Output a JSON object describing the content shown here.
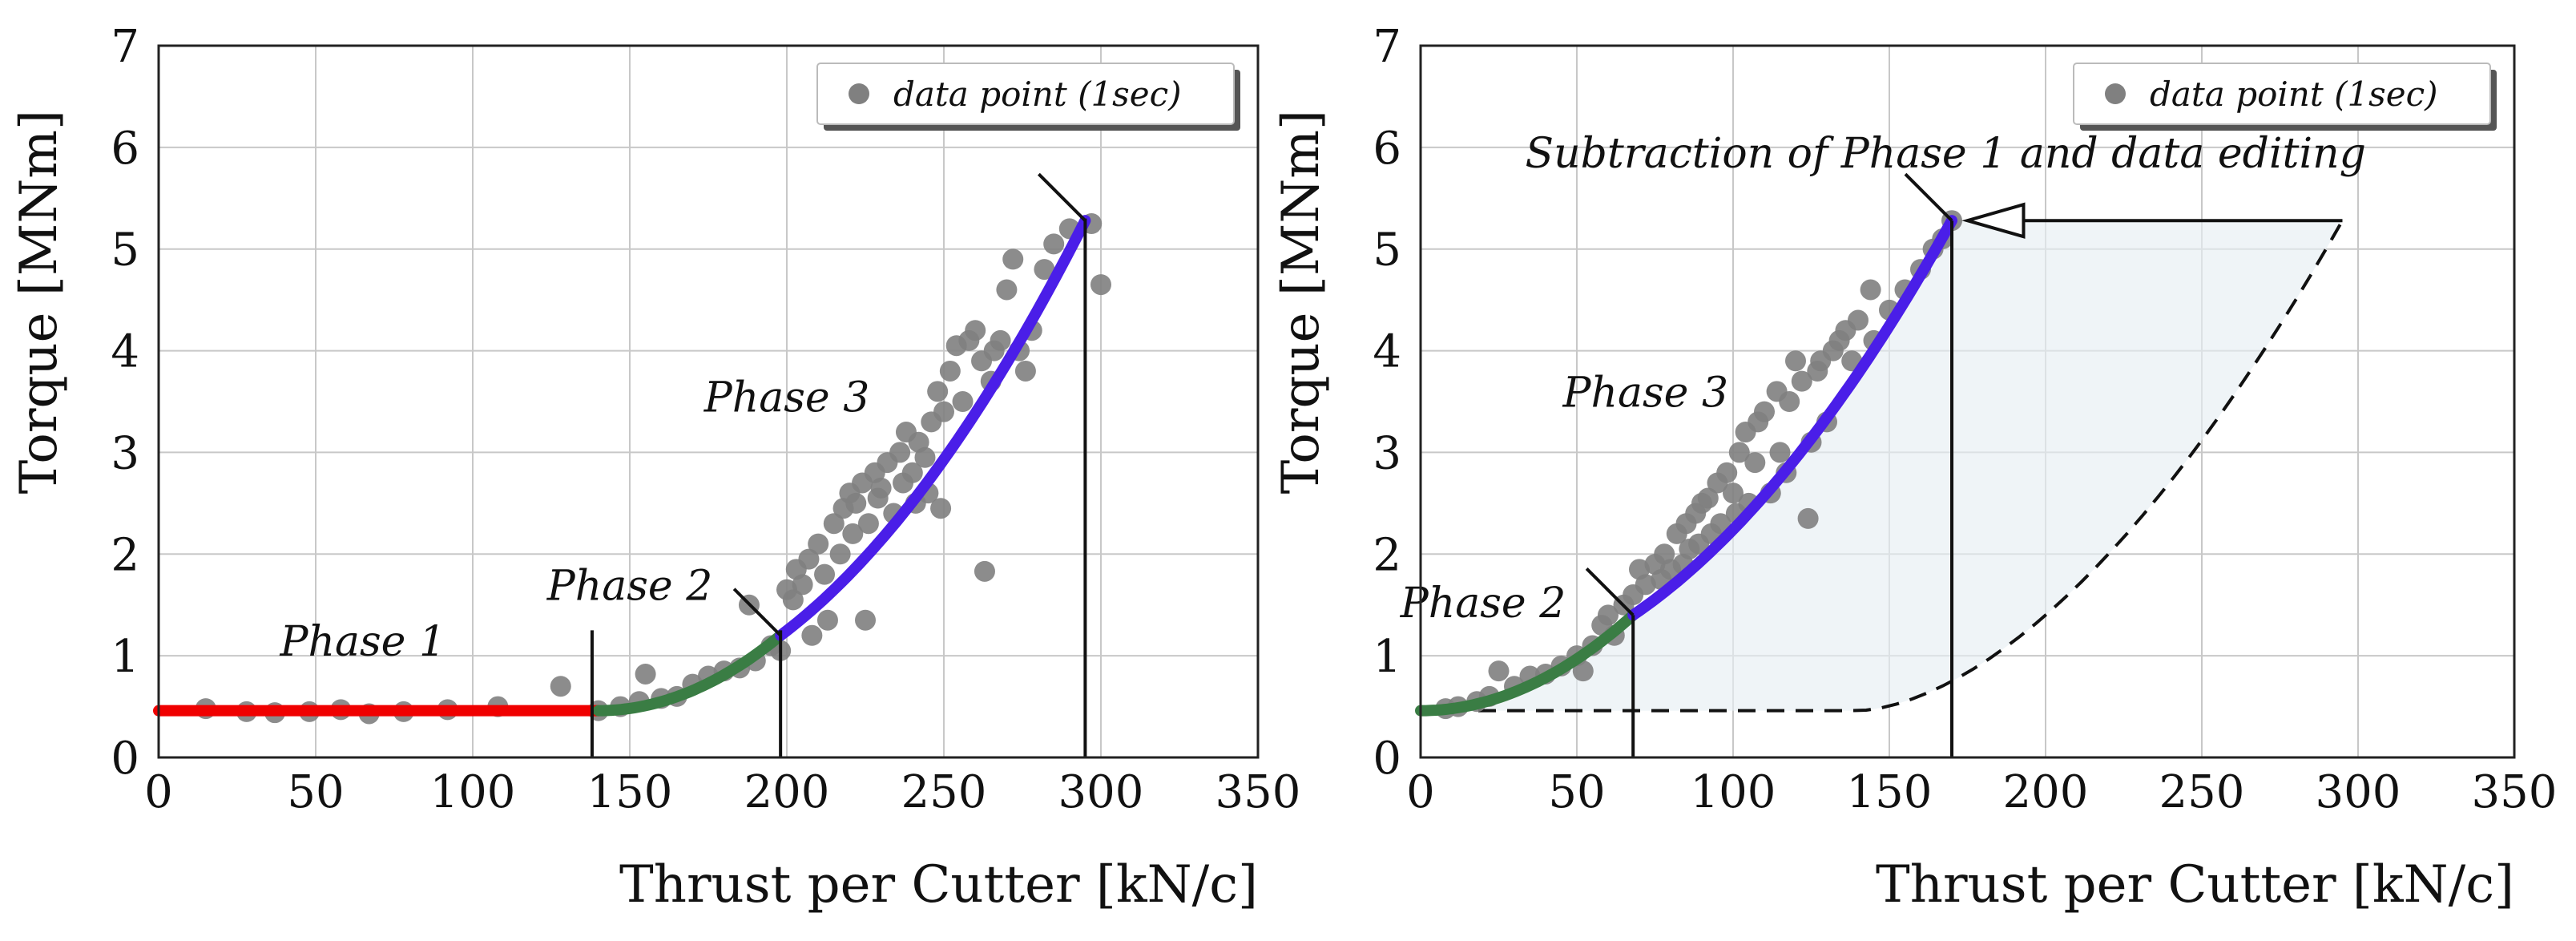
{
  "colors": {
    "point": "#808080",
    "phase1": "#f00000",
    "phase2": "#3a7d44",
    "phase3": "#4a1ee8",
    "grid": "#c8c8c8",
    "fill": "#e6eef3"
  },
  "chart_data": [
    {
      "type": "scatter",
      "xlabel": "Thrust per Cutter [kN/c]",
      "ylabel": "Torque [MNm]",
      "xlim": [
        0,
        350
      ],
      "ylim": [
        0,
        7
      ],
      "xticks": [
        "0",
        "50",
        "100",
        "150",
        "200",
        "250",
        "300",
        "350"
      ],
      "yticks": [
        "0",
        "1",
        "2",
        "3",
        "4",
        "5",
        "6",
        "7"
      ],
      "legend": {
        "label": "data point (1sec)",
        "position": "top-right"
      },
      "annotations": [
        {
          "text": "Phase 1",
          "x": 65,
          "y": 1.0
        },
        {
          "text": "Phase 2",
          "x": 150,
          "y": 1.55
        },
        {
          "text": "Phase 3",
          "x": 200,
          "y": 3.4
        }
      ],
      "points": [
        [
          15,
          0.48
        ],
        [
          28,
          0.45
        ],
        [
          37,
          0.44
        ],
        [
          48,
          0.45
        ],
        [
          58,
          0.47
        ],
        [
          67,
          0.43
        ],
        [
          78,
          0.45
        ],
        [
          92,
          0.47
        ],
        [
          108,
          0.5
        ],
        [
          128,
          0.7
        ],
        [
          140,
          0.46
        ],
        [
          147,
          0.5
        ],
        [
          153,
          0.55
        ],
        [
          155,
          0.82
        ],
        [
          160,
          0.58
        ],
        [
          165,
          0.6
        ],
        [
          170,
          0.72
        ],
        [
          175,
          0.8
        ],
        [
          180,
          0.85
        ],
        [
          185,
          0.88
        ],
        [
          188,
          1.5
        ],
        [
          190,
          0.95
        ],
        [
          195,
          1.1
        ],
        [
          198,
          1.05
        ],
        [
          200,
          1.65
        ],
        [
          202,
          1.55
        ],
        [
          203,
          1.85
        ],
        [
          205,
          1.7
        ],
        [
          207,
          1.95
        ],
        [
          208,
          1.2
        ],
        [
          210,
          2.1
        ],
        [
          212,
          1.8
        ],
        [
          213,
          1.35
        ],
        [
          215,
          2.3
        ],
        [
          217,
          2.0
        ],
        [
          218,
          2.45
        ],
        [
          220,
          2.6
        ],
        [
          221,
          2.2
        ],
        [
          222,
          2.5
        ],
        [
          224,
          2.7
        ],
        [
          225,
          1.35
        ],
        [
          226,
          2.3
        ],
        [
          228,
          2.8
        ],
        [
          229,
          2.55
        ],
        [
          230,
          2.65
        ],
        [
          232,
          2.9
        ],
        [
          234,
          2.4
        ],
        [
          236,
          3.0
        ],
        [
          237,
          2.7
        ],
        [
          238,
          3.2
        ],
        [
          240,
          2.8
        ],
        [
          241,
          2.5
        ],
        [
          242,
          3.1
        ],
        [
          244,
          2.95
        ],
        [
          245,
          2.6
        ],
        [
          246,
          3.3
        ],
        [
          248,
          3.6
        ],
        [
          249,
          2.45
        ],
        [
          250,
          3.4
        ],
        [
          252,
          3.8
        ],
        [
          254,
          4.05
        ],
        [
          256,
          3.5
        ],
        [
          258,
          4.1
        ],
        [
          260,
          4.2
        ],
        [
          262,
          3.9
        ],
        [
          263,
          1.83
        ],
        [
          265,
          3.7
        ],
        [
          266,
          4.0
        ],
        [
          268,
          4.1
        ],
        [
          270,
          4.6
        ],
        [
          272,
          4.9
        ],
        [
          274,
          4.0
        ],
        [
          276,
          3.8
        ],
        [
          278,
          4.2
        ],
        [
          282,
          4.8
        ],
        [
          285,
          5.05
        ],
        [
          290,
          5.2
        ],
        [
          297,
          5.25
        ],
        [
          300,
          4.65
        ]
      ],
      "phase1_curve": {
        "x_range": [
          0,
          140
        ],
        "y": 0.46
      },
      "phase2_curve": {
        "x_range": [
          140,
          198
        ],
        "y0": 0.46,
        "y1": 1.2
      },
      "phase3_curve": {
        "x_range": [
          198,
          295
        ],
        "y0": 1.2,
        "y1": 5.28
      },
      "markers": [
        {
          "x": 138,
          "y_top": 1.25
        },
        {
          "x": 198,
          "y_top": 1.25
        },
        {
          "x": 295,
          "y_top": 5.3
        }
      ],
      "caps": [
        {
          "x": 198,
          "y": 1.2
        },
        {
          "x": 295,
          "y": 5.28
        }
      ]
    },
    {
      "type": "scatter",
      "xlabel": "Thrust per Cutter [kN/c]",
      "ylabel": "Torque [MNm]",
      "xlim": [
        0,
        350
      ],
      "ylim": [
        0,
        7
      ],
      "xticks": [
        "0",
        "50",
        "100",
        "150",
        "200",
        "250",
        "300",
        "350"
      ],
      "yticks": [
        "0",
        "1",
        "2",
        "3",
        "4",
        "5",
        "6",
        "7"
      ],
      "legend": {
        "label": "data point (1sec)",
        "position": "top-right"
      },
      "annotations": [
        {
          "text": "Phase 2",
          "x": 20,
          "y": 1.38
        },
        {
          "text": "Phase 3",
          "x": 72,
          "y": 3.45
        },
        {
          "text": "Subtraction of Phase 1 and data editing",
          "x": 168,
          "y": 5.8
        }
      ],
      "points": [
        [
          8,
          0.48
        ],
        [
          12,
          0.5
        ],
        [
          18,
          0.55
        ],
        [
          22,
          0.6
        ],
        [
          25,
          0.85
        ],
        [
          30,
          0.7
        ],
        [
          35,
          0.8
        ],
        [
          40,
          0.82
        ],
        [
          45,
          0.9
        ],
        [
          50,
          1.0
        ],
        [
          52,
          0.85
        ],
        [
          55,
          1.1
        ],
        [
          58,
          1.3
        ],
        [
          60,
          1.4
        ],
        [
          62,
          1.2
        ],
        [
          65,
          1.5
        ],
        [
          68,
          1.6
        ],
        [
          70,
          1.85
        ],
        [
          72,
          1.7
        ],
        [
          75,
          1.9
        ],
        [
          77,
          1.75
        ],
        [
          78,
          2.0
        ],
        [
          80,
          1.85
        ],
        [
          82,
          2.2
        ],
        [
          84,
          1.9
        ],
        [
          85,
          2.3
        ],
        [
          86,
          2.05
        ],
        [
          88,
          2.4
        ],
        [
          89,
          2.1
        ],
        [
          90,
          2.5
        ],
        [
          92,
          2.55
        ],
        [
          93,
          2.2
        ],
        [
          95,
          2.7
        ],
        [
          96,
          2.3
        ],
        [
          98,
          2.8
        ],
        [
          100,
          2.6
        ],
        [
          101,
          2.4
        ],
        [
          102,
          3.0
        ],
        [
          104,
          3.2
        ],
        [
          105,
          2.5
        ],
        [
          107,
          2.9
        ],
        [
          108,
          3.3
        ],
        [
          110,
          3.4
        ],
        [
          112,
          2.6
        ],
        [
          114,
          3.6
        ],
        [
          115,
          3.0
        ],
        [
          117,
          2.8
        ],
        [
          118,
          3.5
        ],
        [
          120,
          3.9
        ],
        [
          122,
          3.7
        ],
        [
          124,
          2.35
        ],
        [
          125,
          3.1
        ],
        [
          127,
          3.8
        ],
        [
          128,
          3.9
        ],
        [
          130,
          3.3
        ],
        [
          132,
          4.0
        ],
        [
          134,
          4.1
        ],
        [
          136,
          4.2
        ],
        [
          138,
          3.9
        ],
        [
          140,
          4.3
        ],
        [
          144,
          4.6
        ],
        [
          145,
          4.1
        ],
        [
          150,
          4.4
        ],
        [
          155,
          4.6
        ],
        [
          160,
          4.8
        ],
        [
          164,
          5.0
        ],
        [
          167,
          5.1
        ],
        [
          170,
          5.28
        ]
      ],
      "phase2_curve": {
        "x_range": [
          0,
          68
        ],
        "y0": 0.46,
        "y1": 1.4
      },
      "phase3_curve": {
        "x_range": [
          68,
          170
        ],
        "y0": 1.4,
        "y1": 5.28
      },
      "dashed_curve": {
        "x_range": [
          0,
          295
        ],
        "y0": 0.46,
        "y1": 5.28,
        "knee_x": 140
      },
      "markers": [
        {
          "x": 68,
          "y_top": 1.4
        },
        {
          "x": 170,
          "y_top": 5.28
        }
      ],
      "caps": [
        {
          "x": 68,
          "y": 1.4
        },
        {
          "x": 170,
          "y": 5.28
        }
      ],
      "arrow": {
        "from_x": 295,
        "to_x": 175,
        "y": 5.28
      }
    }
  ]
}
